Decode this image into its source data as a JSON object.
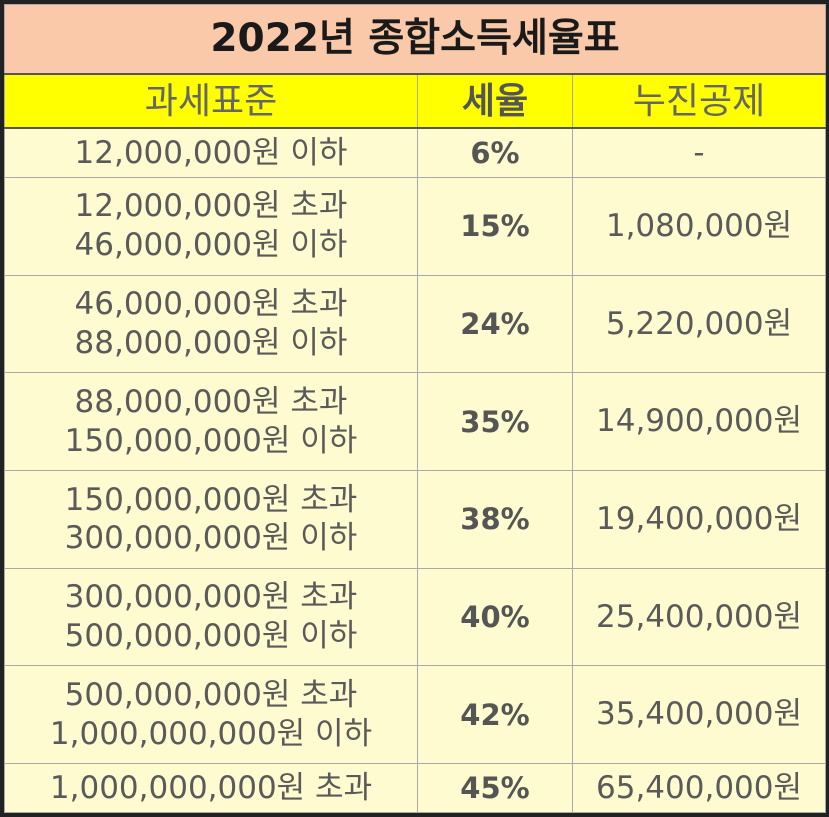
{
  "title": "2022년 종합소득세율표",
  "headers": {
    "bracket": "과세표준",
    "rate": "세율",
    "deduction": "누진공제"
  },
  "rows": [
    {
      "line1": "12,000,000원 이하",
      "line2": "",
      "rate": "6%",
      "deduction": "-"
    },
    {
      "line1": "12,000,000원 초과",
      "line2": "46,000,000원 이하",
      "rate": "15%",
      "deduction": "1,080,000원"
    },
    {
      "line1": "46,000,000원 초과",
      "line2": "88,000,000원 이하",
      "rate": "24%",
      "deduction": "5,220,000원"
    },
    {
      "line1": "88,000,000원 초과",
      "line2": "150,000,000원 이하",
      "rate": "35%",
      "deduction": "14,900,000원"
    },
    {
      "line1": "150,000,000원 초과",
      "line2": "300,000,000원 이하",
      "rate": "38%",
      "deduction": "19,400,000원"
    },
    {
      "line1": "300,000,000원 초과",
      "line2": "500,000,000원 이하",
      "rate": "40%",
      "deduction": "25,400,000원"
    },
    {
      "line1": "500,000,000원 초과",
      "line2": "1,000,000,000원 이하",
      "rate": "42%",
      "deduction": "35,400,000원"
    },
    {
      "line1": "1,000,000,000원 초과",
      "line2": "",
      "rate": "45%",
      "deduction": "65,400,000원"
    }
  ],
  "colors": {
    "title_bg": "#f9c9a9",
    "header_bg": "#ffff00",
    "body_bg": "#fffbd0",
    "border": "#222222"
  }
}
